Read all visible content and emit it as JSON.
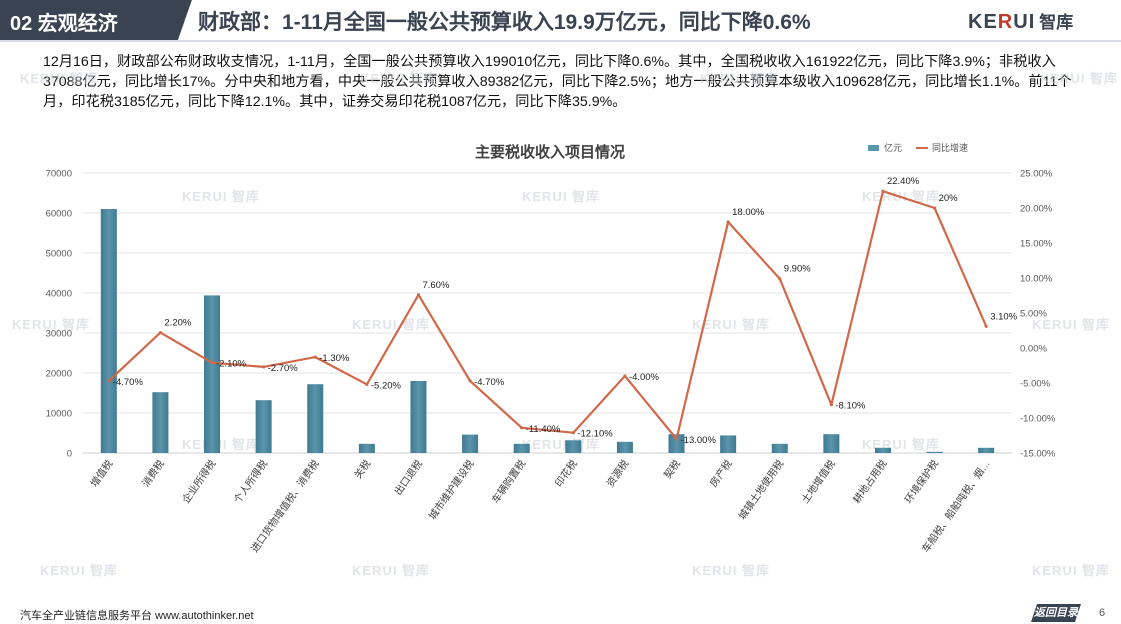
{
  "header": {
    "section_label": "02 宏观经济",
    "title": "财政部：1-11月全国一般公共预算收入19.9万亿元，同比下降0.6%",
    "logo_text": "KERUI",
    "logo_cn": "智库"
  },
  "summary": "12月16日，财政部公布财政收支情况，1-11月，全国一般公共预算收入199010亿元，同比下降0.6%。其中，全国税收收入161922亿元，同比下降3.9%；非税收入37088亿元，同比增长17%。分中央和地方看，中央一般公共预算收入89382亿元，同比下降2.5%；地方一般公共预算本级收入109628亿元，同比增长1.1%。前11个月，印花税3185亿元，同比下降12.1%。其中，证券交易印花税1087亿元，同比下降35.9%。",
  "watermark": "KERUI 智库",
  "colors": {
    "bar": "#5b95ab",
    "line": "#d0694a",
    "header_dark": "#3a4351"
  },
  "chart_data": {
    "type": "bar",
    "title": "主要税收收入项目情况",
    "legend": [
      "亿元",
      "同比增速"
    ],
    "legend_position": "top-right",
    "categories": [
      "增值税",
      "消费税",
      "企业所得税",
      "个人所得税",
      "进口货物增值税、消费税",
      "关税",
      "出口退税",
      "城市维护建设税",
      "车辆购置税",
      "印花税",
      "资源税",
      "契税",
      "房产税",
      "城镇土地使用税",
      "土地增值税",
      "耕地占用税",
      "环境保护税",
      "车船税、船舶吨税、烟…"
    ],
    "series": [
      {
        "name": "亿元",
        "type": "bar",
        "axis": "left",
        "values": [
          61000,
          15200,
          39400,
          13200,
          17200,
          2300,
          18000,
          4600,
          2300,
          3185,
          2800,
          4700,
          4400,
          2300,
          4700,
          1300,
          300,
          1300
        ]
      },
      {
        "name": "同比增速",
        "type": "line",
        "axis": "right",
        "values": [
          -4.7,
          2.2,
          -2.1,
          -2.7,
          -1.3,
          -5.2,
          7.6,
          -4.7,
          -11.4,
          -12.1,
          -4.0,
          -13.0,
          18.0,
          9.9,
          -8.1,
          22.4,
          20.0,
          3.1
        ],
        "labels": [
          "-4.70%",
          "2.20%",
          "-2.10%",
          "-2.70%",
          "-1.30%",
          "-5.20%",
          "7.60%",
          "-4.70%",
          "-11.40%",
          "-12.10%",
          "-4.00%",
          "-13.00%",
          "18.00%",
          "9.90%",
          "-8.10%",
          "22.40%",
          "20%",
          "3.10%"
        ]
      }
    ],
    "y_left": {
      "range": [
        0,
        70000
      ],
      "ticks": [
        "0",
        "10000",
        "20000",
        "30000",
        "40000",
        "50000",
        "60000",
        "70000"
      ]
    },
    "y_right": {
      "range": [
        -15,
        25
      ],
      "ticks": [
        "-15.00%",
        "-10.00%",
        "-5.00%",
        "0.00%",
        "5.00%",
        "10.00%",
        "15.00%",
        "20.00%",
        "25.00%"
      ]
    },
    "grid": true
  },
  "footer": {
    "left": "汽车全产业链信息服务平台 www.autothinker.net",
    "back_button": "返回目录",
    "page_number": "6"
  }
}
